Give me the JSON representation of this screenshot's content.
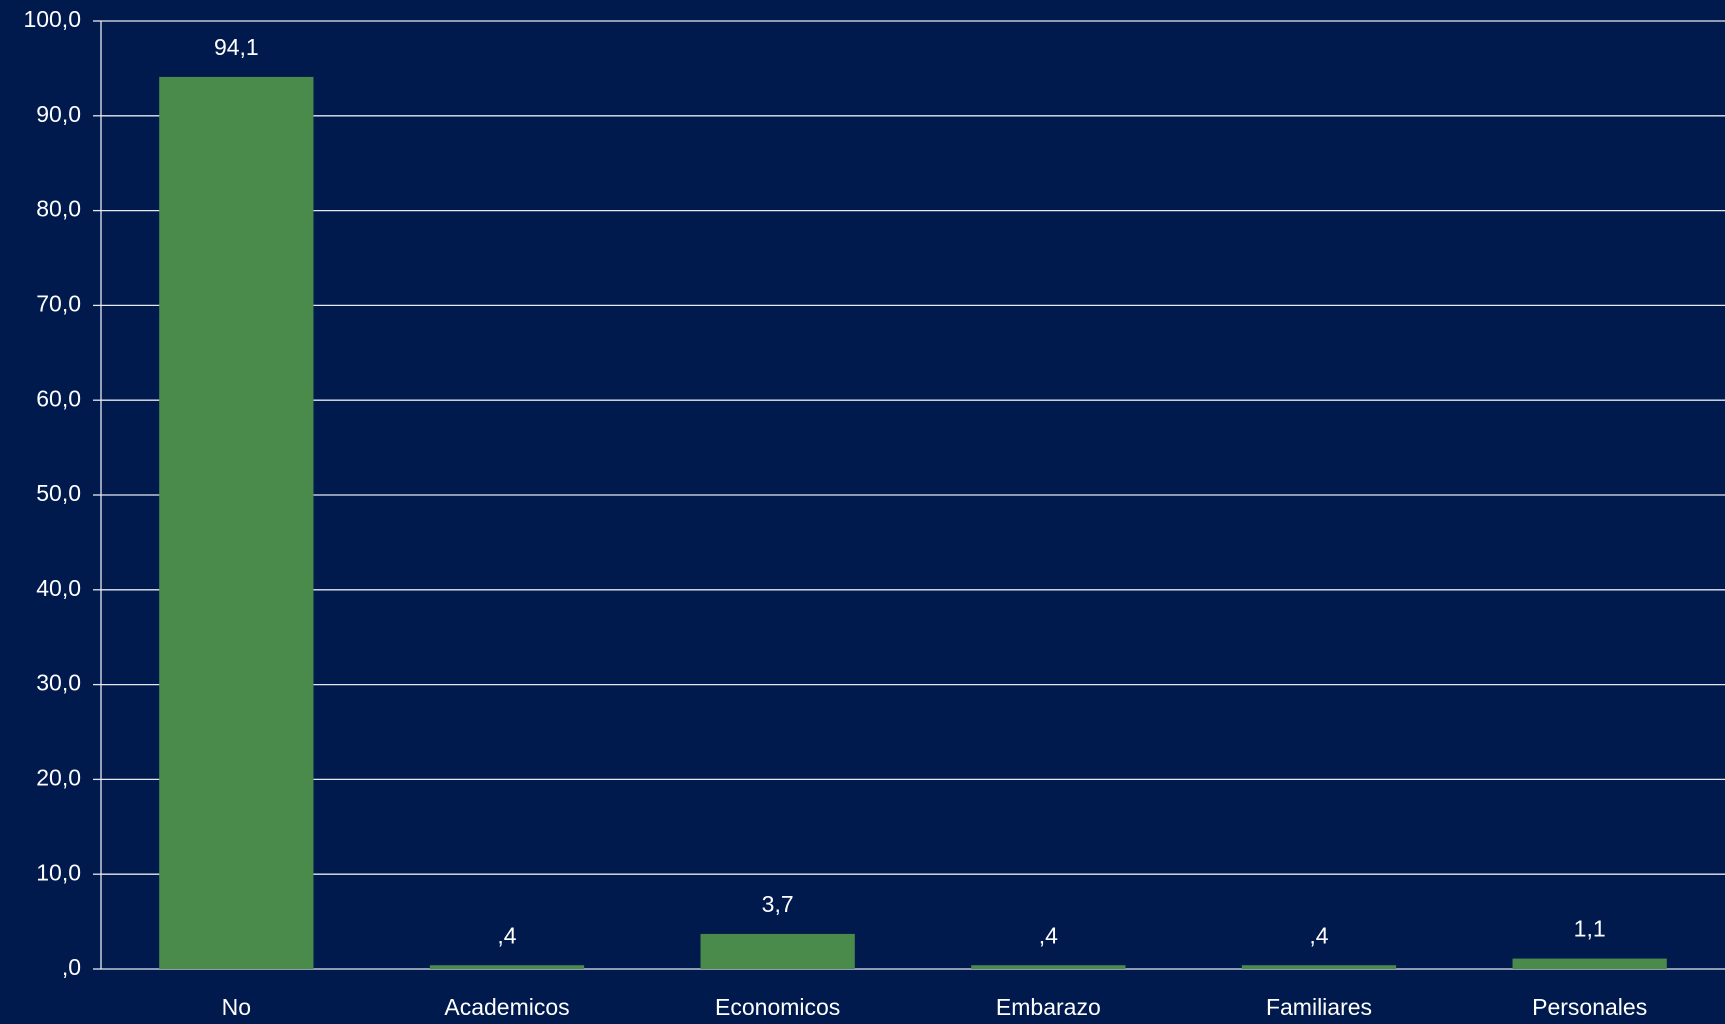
{
  "chart_data": {
    "type": "bar",
    "categories": [
      "No",
      "Academicos",
      "Economicos",
      "Embarazo",
      "Familiares",
      "Personales"
    ],
    "values": [
      94.1,
      0.4,
      3.7,
      0.4,
      0.4,
      1.1
    ],
    "value_labels": [
      "94,1",
      ",4",
      "3,7",
      ",4",
      ",4",
      "1,1"
    ],
    "color": "#4a8a4b",
    "ylim": [
      0,
      100
    ],
    "yticks": [
      {
        "value": 0,
        "label": ",0"
      },
      {
        "value": 10,
        "label": "10,0"
      },
      {
        "value": 20,
        "label": "20,0"
      },
      {
        "value": 30,
        "label": "30,0"
      },
      {
        "value": 40,
        "label": "40,0"
      },
      {
        "value": 50,
        "label": "50,0"
      },
      {
        "value": 60,
        "label": "60,0"
      },
      {
        "value": 70,
        "label": "70,0"
      },
      {
        "value": 80,
        "label": "80,0"
      },
      {
        "value": 90,
        "label": "90,0"
      },
      {
        "value": 100,
        "label": "100,0"
      }
    ],
    "grid": true
  }
}
